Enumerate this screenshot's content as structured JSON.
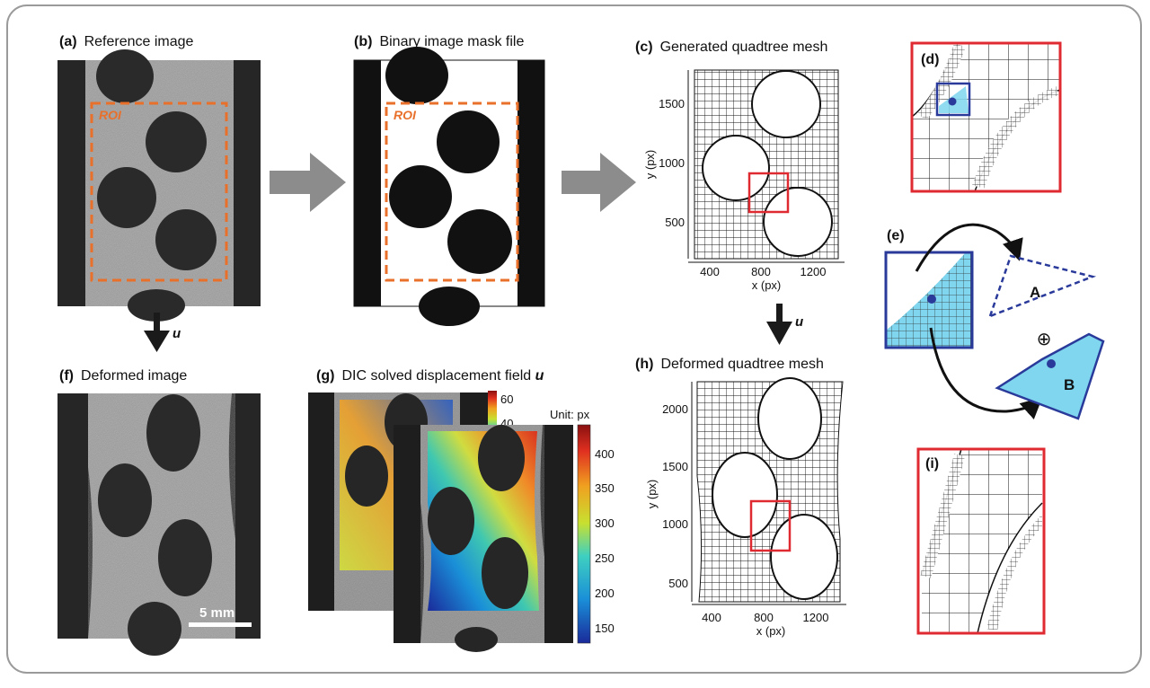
{
  "panels": {
    "a": {
      "letter": "(a)",
      "title": "Reference image",
      "roi": "ROI"
    },
    "b": {
      "letter": "(b)",
      "title": "Binary image mask file",
      "roi": "ROI"
    },
    "c": {
      "letter": "(c)",
      "title": "Generated quadtree mesh",
      "xlabel": "x (px)",
      "ylabel": "y (px)",
      "xticks": [
        "400",
        "800",
        "1200"
      ],
      "yticks": [
        "1500",
        "1000",
        "500"
      ]
    },
    "d": {
      "letter": "(d)"
    },
    "e": {
      "letter": "(e)",
      "label_a": "A",
      "label_b": "B",
      "oplus": "⊕"
    },
    "f": {
      "letter": "(f)",
      "title": "Deformed image",
      "scale_label": "5 mm"
    },
    "g": {
      "letter": "(g)",
      "title": "DIC solved displacement field",
      "title_var": "u",
      "unit": "Unit: px",
      "back_ticks": [
        "60",
        "40"
      ],
      "colorbar_ticks": [
        "400",
        "350",
        "300",
        "250",
        "200",
        "150"
      ]
    },
    "h": {
      "letter": "(h)",
      "title": "Deformed quadtree mesh",
      "xlabel": "x (px)",
      "ylabel": "y (px)",
      "xticks": [
        "400",
        "800",
        "1200"
      ],
      "yticks": [
        "2000",
        "1500",
        "1000",
        "500"
      ]
    },
    "i": {
      "letter": "(i)"
    }
  },
  "arrows": {
    "u_label_1": "u",
    "u_label_2": "u"
  },
  "colors": {
    "roi": "#e8702a",
    "highlight": "#e02a32",
    "zoom_box": "#2a3a9a",
    "cell_fill": "#7fd6ee",
    "arrow": "#8c8c8c"
  }
}
